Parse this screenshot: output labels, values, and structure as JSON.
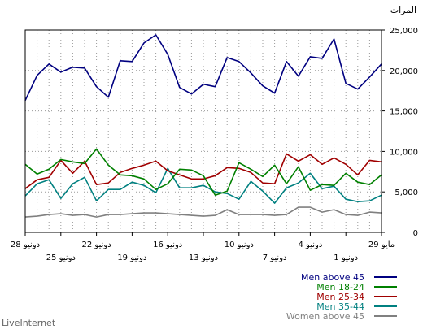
{
  "chart_data": {
    "type": "line",
    "ylabel": "المرات",
    "ylim": [
      0,
      25000
    ],
    "yticks": [
      "0",
      "5,000",
      "10,000",
      "15,000",
      "20,000",
      "25,000"
    ],
    "grid": true,
    "legend_position": "bottom-right",
    "x_ticks_upper": [
      "28 دونيو",
      "22 دونيو",
      "16 دونيو",
      "10 دونيو",
      "4 دونيو",
      "29 مايو"
    ],
    "x_ticks_lower": [
      "25 دونيو",
      "19 دونيو",
      "13 دونيو",
      "7 دونيو",
      "1 دونيو"
    ],
    "series": [
      {
        "name": "Men above 45",
        "color": "#000080",
        "values": [
          16300,
          19400,
          20800,
          19800,
          20400,
          20300,
          18000,
          16700,
          21200,
          21100,
          23400,
          24400,
          22000,
          17900,
          17100,
          18300,
          18000,
          21600,
          21100,
          19700,
          18100,
          17200,
          21100,
          19300,
          21700,
          21500,
          23900,
          18400,
          17700,
          19200,
          20800
        ]
      },
      {
        "name": "Men 18-24",
        "color": "#008000",
        "values": [
          8400,
          7200,
          7800,
          9000,
          8700,
          8500,
          10300,
          8300,
          7100,
          7000,
          6600,
          5300,
          6000,
          7800,
          7700,
          7000,
          4600,
          5100,
          8600,
          7800,
          6900,
          8300,
          6000,
          8100,
          5200,
          5900,
          5800,
          7300,
          6200,
          5900,
          7100
        ]
      },
      {
        "name": "Men 25-34",
        "color": "#a00000",
        "values": [
          5400,
          6500,
          6800,
          8900,
          7300,
          8800,
          5900,
          6100,
          7400,
          7900,
          8300,
          8800,
          7600,
          7100,
          6600,
          6600,
          7000,
          8000,
          7900,
          7400,
          6100,
          6000,
          9700,
          8800,
          9600,
          8400,
          9200,
          8400,
          7100,
          8900,
          8700
        ]
      },
      {
        "name": "Men 35-44",
        "color": "#008080",
        "values": [
          4500,
          6000,
          6500,
          4200,
          6000,
          6800,
          3900,
          5300,
          5300,
          6200,
          5800,
          4900,
          7900,
          5500,
          5500,
          5800,
          5000,
          4800,
          4100,
          6300,
          5100,
          3600,
          5500,
          6100,
          7300,
          5400,
          5700,
          4100,
          3800,
          3900,
          4600
        ]
      },
      {
        "name": "Women above 45",
        "color": "#808080",
        "values": [
          1900,
          2000,
          2200,
          2300,
          2100,
          2200,
          1900,
          2200,
          2200,
          2300,
          2400,
          2400,
          2300,
          2200,
          2100,
          2000,
          2100,
          2800,
          2200,
          2200,
          2200,
          2100,
          2200,
          3100,
          3100,
          2500,
          2800,
          2200,
          2100,
          2500,
          2400
        ]
      }
    ]
  },
  "credit": "LiveInternet"
}
